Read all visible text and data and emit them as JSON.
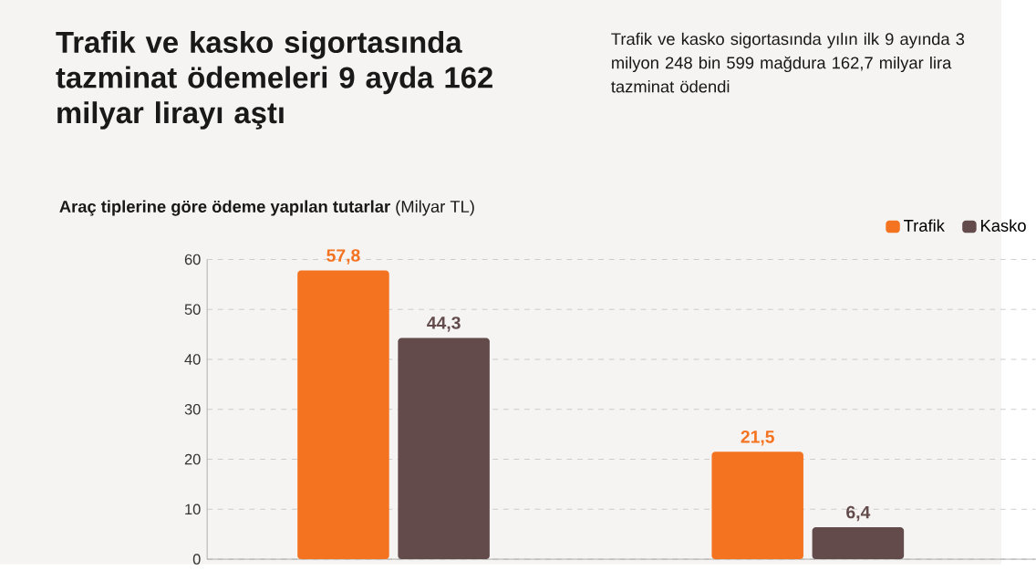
{
  "chart_data": {
    "type": "bar",
    "title": "Trafik ve kasko sigortasında tazminat ödemeleri 9 ayda 162 milyar lirayı aştı",
    "subtitle": "Trafik ve kasko sigortasında yılın ilk 9 ayında 3 milyon 248 bin 599 mağdura 162,7 milyar lira tazminat ödendi",
    "ylabel": "**Araç tiplerine göre ödeme yapılan tutarlar** (Milyar TL)",
    "categories": [
      null,
      null
    ],
    "series": [
      {
        "name": "Trafik",
        "color": "#f47321",
        "values": [
          57.8,
          21.5
        ],
        "value_labels": [
          "57,8",
          "21,5"
        ]
      },
      {
        "name": "Kasko",
        "color": "#634b4b",
        "values": [
          44.3,
          6.4
        ],
        "value_labels": [
          "44,3",
          "6,4"
        ]
      }
    ],
    "ylim": [
      0,
      60
    ],
    "yticks": [
      0,
      10,
      20,
      30,
      40,
      50,
      60
    ],
    "grid": "y",
    "legend": "top right"
  }
}
